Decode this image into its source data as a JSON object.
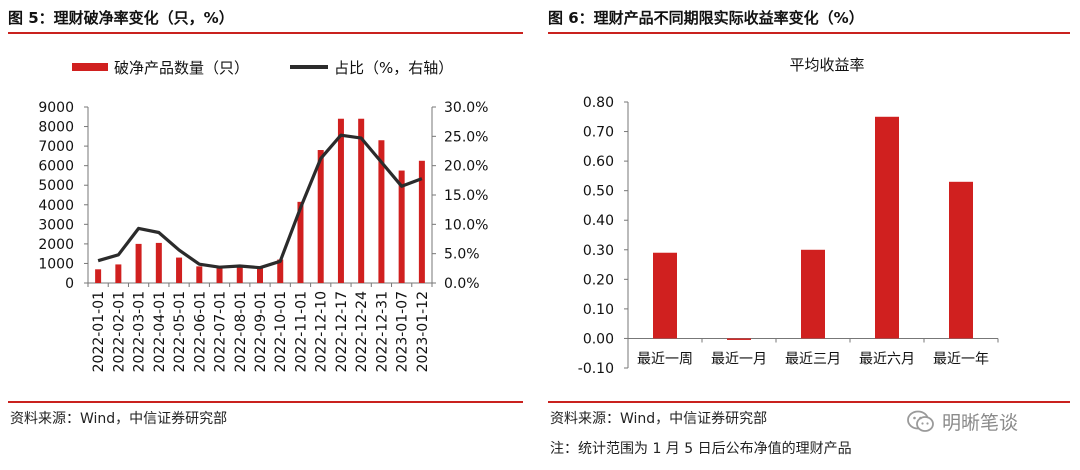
{
  "panels": {
    "left": {
      "title": "图 5：理财破净率变化（只，%）",
      "source": "资料来源：Wind，中信证券研究部"
    },
    "right": {
      "title": "图 6：理财产品不同期限实际收益率变化（%）",
      "source": "资料来源：Wind，中信证券研究部",
      "note": "注：统计范围为 1 月 5 日后公布净值的理财产品"
    }
  },
  "watermark": {
    "text": "明晰笔谈",
    "icon": "wechat-icon"
  },
  "colors": {
    "bar": "#d0201f",
    "line": "#2b2b2b",
    "rule": "#c9211e"
  },
  "chart_data": [
    {
      "type": "bar+line",
      "categories": [
        "2022-01-01",
        "2022-02-01",
        "2022-03-01",
        "2022-04-01",
        "2022-05-01",
        "2022-06-01",
        "2022-07-01",
        "2022-08-01",
        "2022-09-01",
        "2022-10-01",
        "2022-11-01",
        "2022-12-10",
        "2022-12-17",
        "2022-12-24",
        "2022-12-31",
        "2023-01-07",
        "2023-01-12"
      ],
      "series": [
        {
          "name": "破净产品数量（只）",
          "kind": "bar",
          "axis": "left",
          "values": [
            700,
            950,
            2000,
            2050,
            1300,
            850,
            800,
            850,
            750,
            1200,
            4150,
            6800,
            8400,
            8400,
            7300,
            5750,
            6250
          ]
        },
        {
          "name": "占比（%，右轴）",
          "kind": "line",
          "axis": "right",
          "values": [
            3.8,
            4.8,
            9.3,
            8.6,
            5.6,
            3.2,
            2.7,
            2.9,
            2.6,
            3.7,
            12.8,
            21.2,
            25.2,
            24.7,
            20.6,
            16.5,
            17.8
          ]
        }
      ],
      "y_left": {
        "min": 0,
        "max": 9000,
        "step": 1000,
        "ticks": [
          "0",
          "1000",
          "2000",
          "3000",
          "4000",
          "5000",
          "6000",
          "7000",
          "8000",
          "9000"
        ]
      },
      "y_right": {
        "min": 0,
        "max": 30,
        "step": 5,
        "ticks": [
          "0.0%",
          "5.0%",
          "10.0%",
          "15.0%",
          "20.0%",
          "25.0%",
          "30.0%"
        ]
      },
      "legend": "top",
      "grid": false
    },
    {
      "type": "bar",
      "title": "平均收益率",
      "categories": [
        "最近一周",
        "最近一月",
        "最近三月",
        "最近六月",
        "最近一年"
      ],
      "values": [
        0.29,
        -0.005,
        0.3,
        0.75,
        0.53
      ],
      "ylim": [
        -0.1,
        0.8
      ],
      "ticks": [
        "-0.10",
        "0.00",
        "0.10",
        "0.20",
        "0.30",
        "0.40",
        "0.50",
        "0.60",
        "0.70",
        "0.80"
      ],
      "grid": false
    }
  ]
}
